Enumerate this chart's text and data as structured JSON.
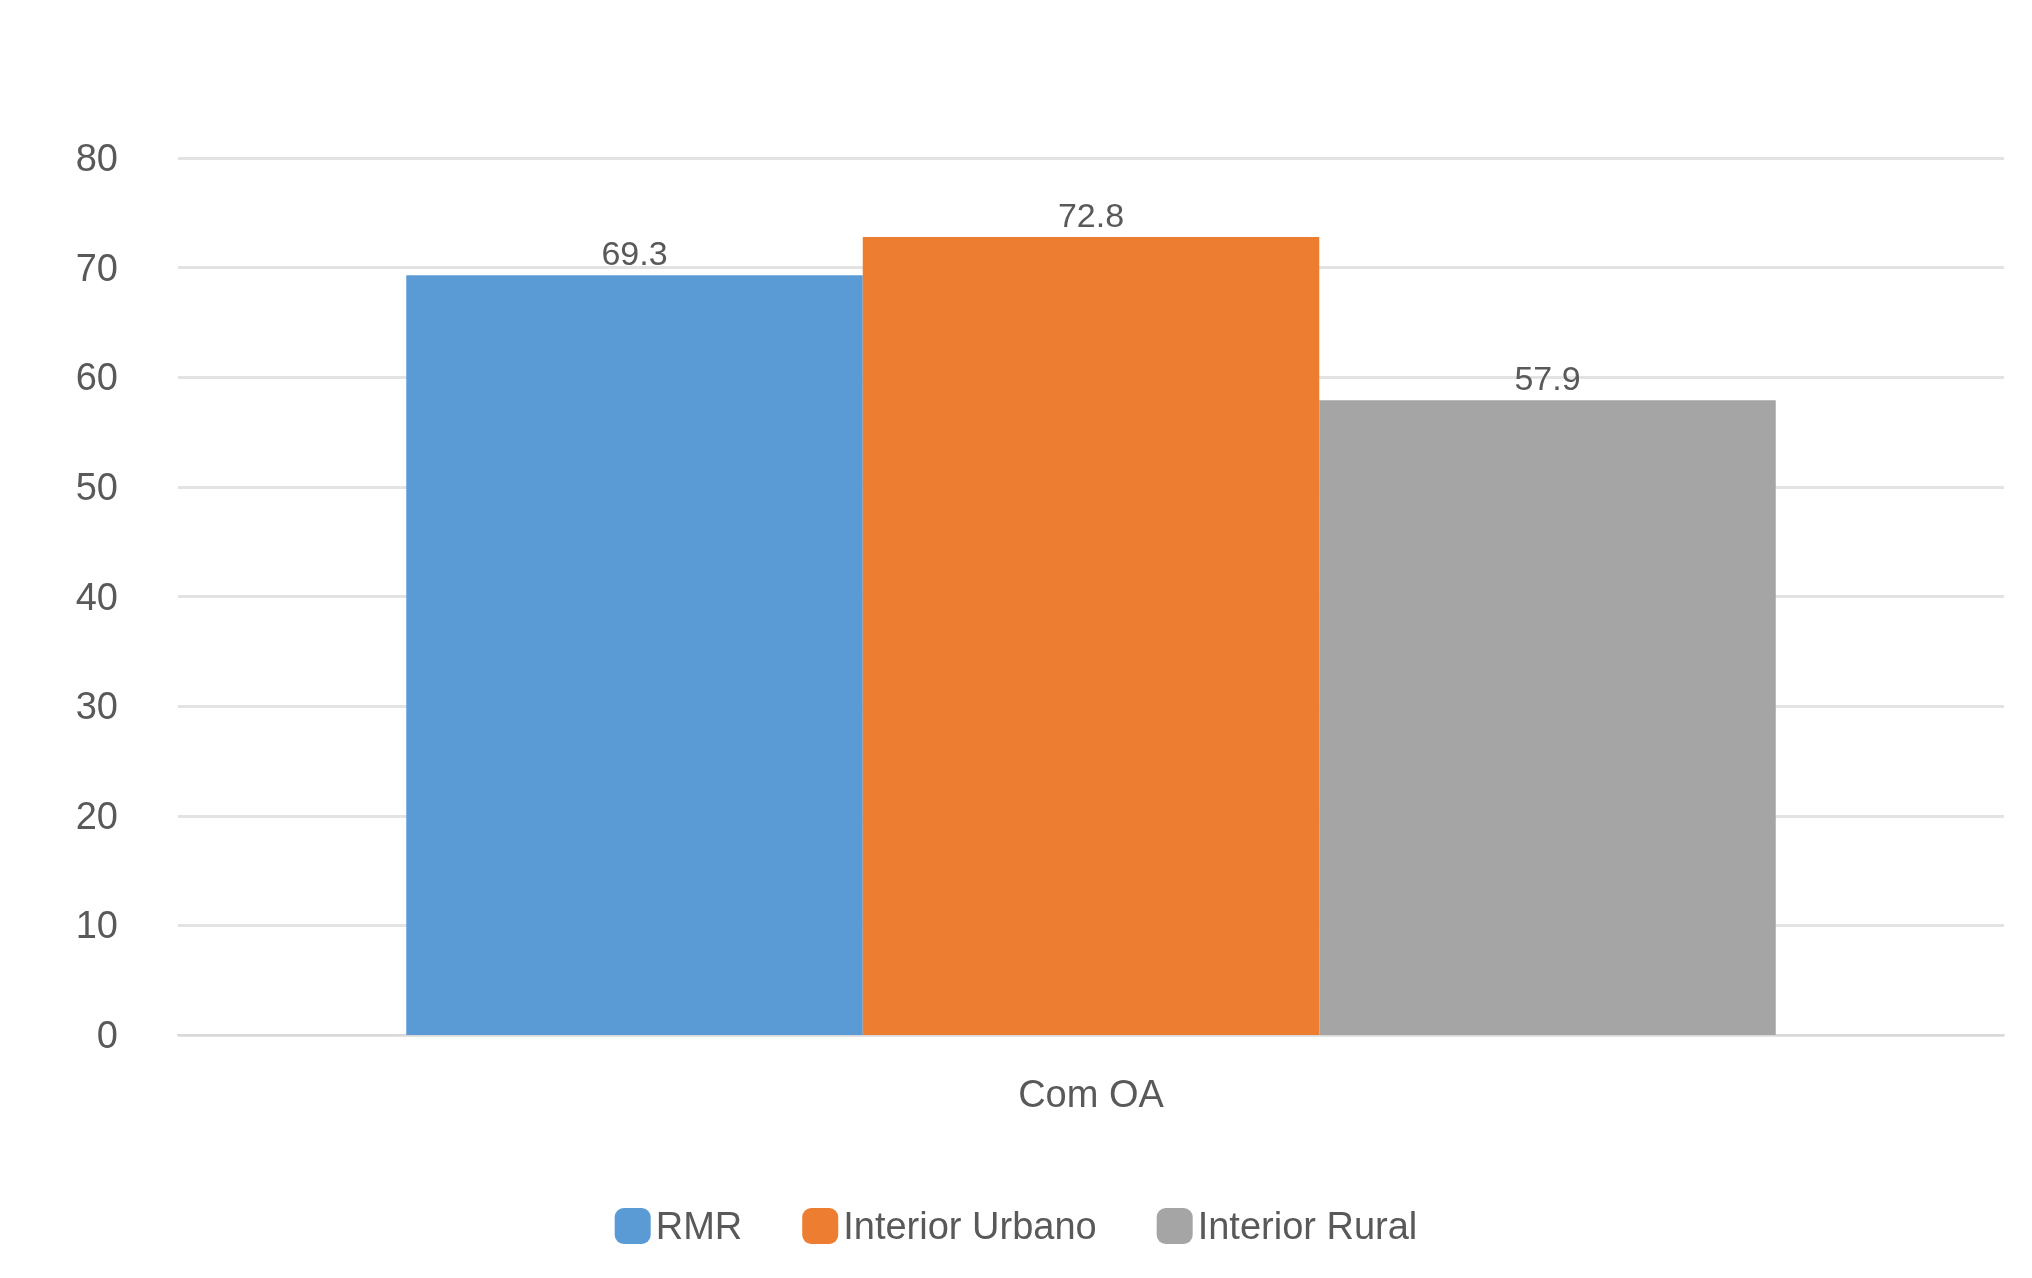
{
  "chart_data": {
    "type": "bar",
    "categories": [
      "Com OA"
    ],
    "series": [
      {
        "name": "RMR",
        "color": "#5b9bd5",
        "values": [
          69.3
        ]
      },
      {
        "name": "Interior Urbano",
        "color": "#ed7d31",
        "values": [
          72.8
        ]
      },
      {
        "name": "Interior Rural",
        "color": "#a5a5a5",
        "values": [
          57.9
        ]
      }
    ],
    "ylim": [
      0,
      80
    ],
    "yticks": [
      0,
      10,
      20,
      30,
      40,
      50,
      60,
      70,
      80
    ],
    "grid": "y",
    "legend": "bottom",
    "data_labels": true
  }
}
